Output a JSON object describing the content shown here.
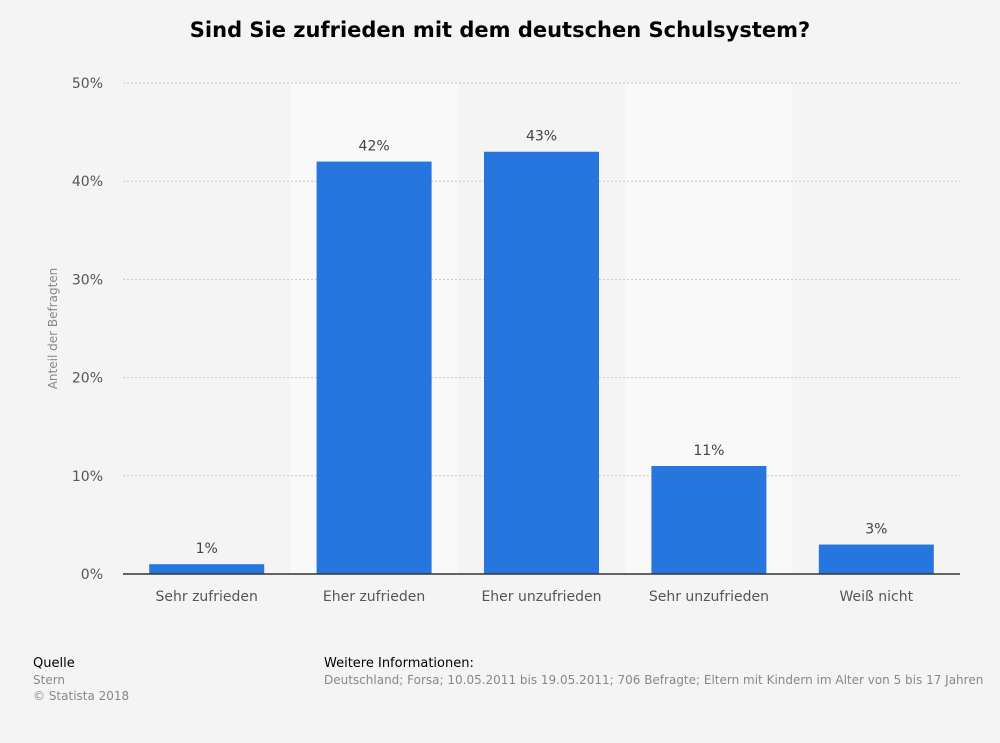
{
  "chart_data": {
    "type": "bar",
    "title": "Sind Sie zufrieden mit dem deutschen Schulsystem?",
    "xlabel": "",
    "ylabel": "Anteil der Befragten",
    "categories": [
      "Sehr zufrieden",
      "Eher zufrieden",
      "Eher unzufrieden",
      "Sehr unzufrieden",
      "Weiß nicht"
    ],
    "values": [
      1,
      42,
      43,
      11,
      3
    ],
    "value_labels": [
      "1%",
      "42%",
      "43%",
      "11%",
      "3%"
    ],
    "ylim": [
      0,
      50
    ],
    "yticks": [
      0,
      10,
      20,
      30,
      40,
      50
    ],
    "ytick_labels": [
      "0%",
      "10%",
      "20%",
      "30%",
      "40%",
      "50%"
    ],
    "grid": true,
    "colors": {
      "bar": "#2776de",
      "band": "#f9f9f9",
      "grid": "#c8c8c8",
      "axis": "#333333",
      "tick_text": "#555555",
      "label_text": "#444444"
    }
  },
  "footer": {
    "source_heading": "Quelle",
    "source_name": "Stern",
    "copyright": "© Statista 2018",
    "info_heading": "Weitere Informationen:",
    "info_text": "Deutschland; Forsa; 10.05.2011 bis 19.05.2011; 706 Befragte; Eltern mit Kindern im Alter von 5 bis 17 Jahren"
  }
}
